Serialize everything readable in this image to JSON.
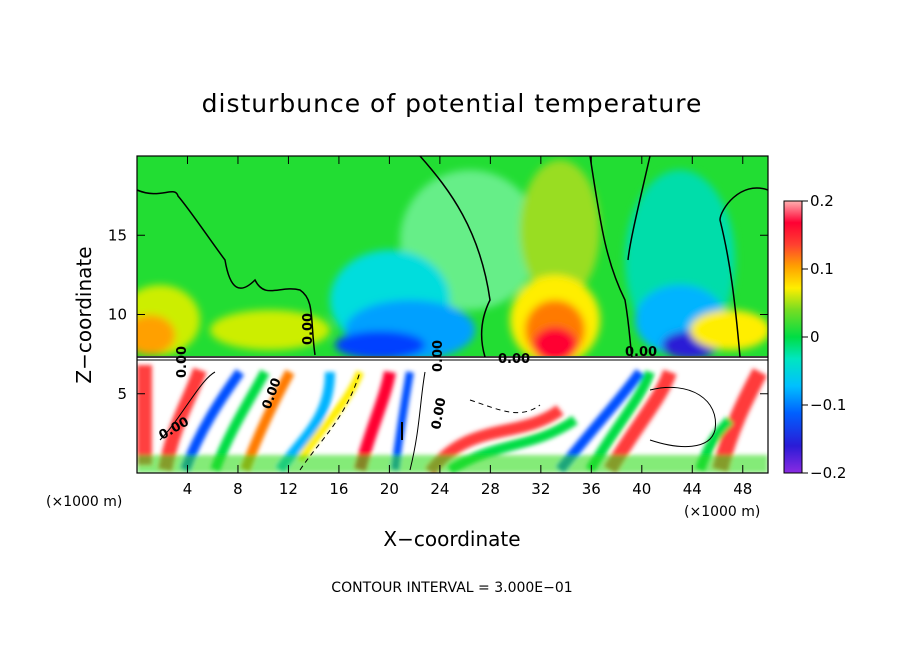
{
  "chart_data": {
    "type": "heatmap",
    "title": "disturbunce of potential temperature",
    "xlabel": "X−coordinate",
    "ylabel": "Z−coordinate",
    "x_unit_label": "(×1000 m)",
    "x_unit_label_right": "(×1000 m)",
    "footer": "CONTOUR INTERVAL = 3.000E−01",
    "xlim": [
      0,
      50
    ],
    "ylim": [
      0,
      20
    ],
    "x_ticks": [
      4,
      8,
      12,
      16,
      20,
      24,
      28,
      32,
      36,
      40,
      44,
      48
    ],
    "x_tick_labels": [
      "4",
      "8",
      "12",
      "16",
      "20",
      "24",
      "28",
      "32",
      "36",
      "40",
      "44",
      "48"
    ],
    "y_ticks": [
      5,
      10,
      15
    ],
    "y_tick_labels": [
      "5",
      "10",
      "15"
    ],
    "colorbar": {
      "min": -0.2,
      "max": 0.2,
      "tick_labels": [
        "0.2",
        "0.1",
        "0",
        "−0.1",
        "−0.2"
      ],
      "tick_values": [
        0.2,
        0.1,
        0,
        -0.1,
        -0.2
      ],
      "colors": [
        "#8a2be2",
        "#3a1bd6",
        "#0050ff",
        "#00b4ff",
        "#00e6e6",
        "#00e6a0",
        "#00dd44",
        "#33dd22",
        "#88dd22",
        "#ccee00",
        "#ffee00",
        "#ffb000",
        "#ff7a00",
        "#ff3a3a",
        "#ff0033",
        "#ff8080",
        "#ffb0b0"
      ]
    },
    "contour_labels": [
      "0.00",
      "0.00",
      "0.00",
      "0.00",
      "0.00",
      "0.00",
      "0.00",
      "0.00"
    ]
  }
}
